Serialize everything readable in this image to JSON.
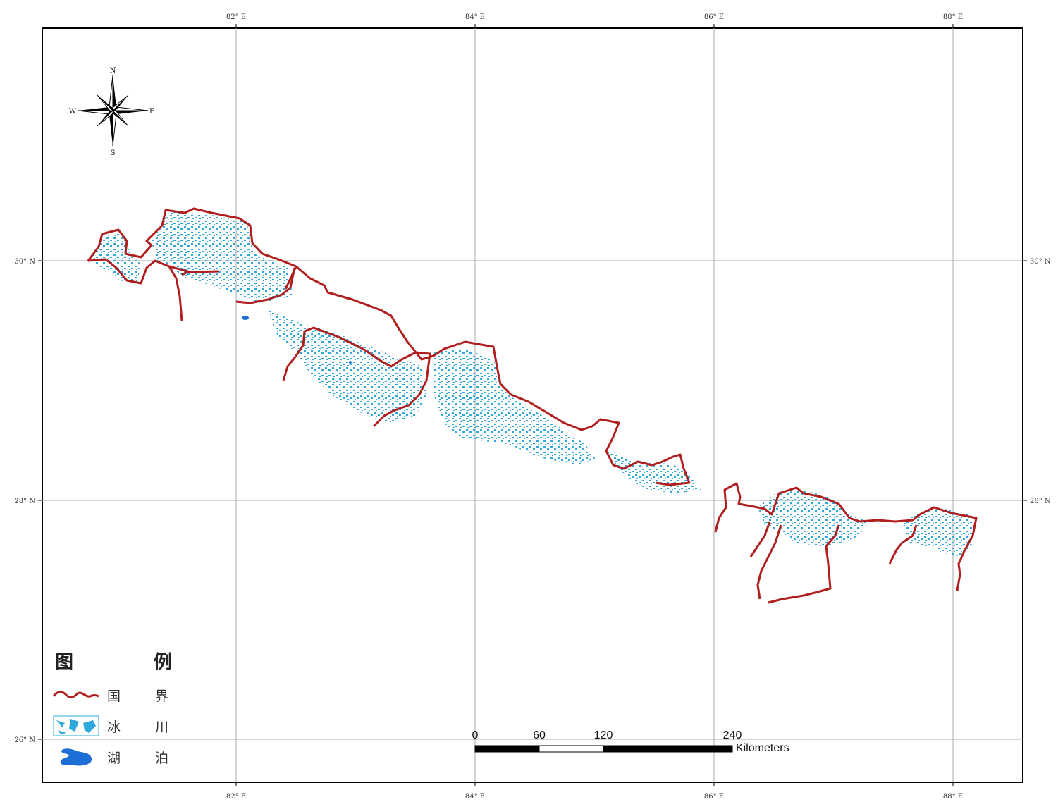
{
  "map": {
    "colors": {
      "border": "#b01e1e",
      "glacier": "#2fa9dc",
      "lake": "#1d6fd6",
      "frame": "#000000",
      "grid": "#a8a8a8"
    },
    "top_labels": [
      "82° E",
      "84° E",
      "86° E",
      "88° E"
    ],
    "bottom_labels": [
      "82° E",
      "84° E",
      "86° E",
      "88° E"
    ],
    "left_labels": [
      "30° N",
      "28° N",
      "26° N"
    ],
    "right_labels": [
      "30° N",
      "28° N"
    ],
    "compass": {
      "n": "N",
      "s": "S",
      "e": "E",
      "w": "W",
      "icon": "compass-rose-icon"
    }
  },
  "legend": {
    "title_left": "图",
    "title_right": "例",
    "items": [
      {
        "icon": "border-line-icon",
        "label_left": "国",
        "label_right": "界"
      },
      {
        "icon": "glacier-pattern-icon",
        "label_left": "冰",
        "label_right": "川"
      },
      {
        "icon": "lake-shape-icon",
        "label_left": "湖",
        "label_right": "泊"
      }
    ]
  },
  "scale_bar": {
    "labels": [
      "0",
      "60",
      "120",
      "240"
    ],
    "unit": "Kilometers"
  }
}
